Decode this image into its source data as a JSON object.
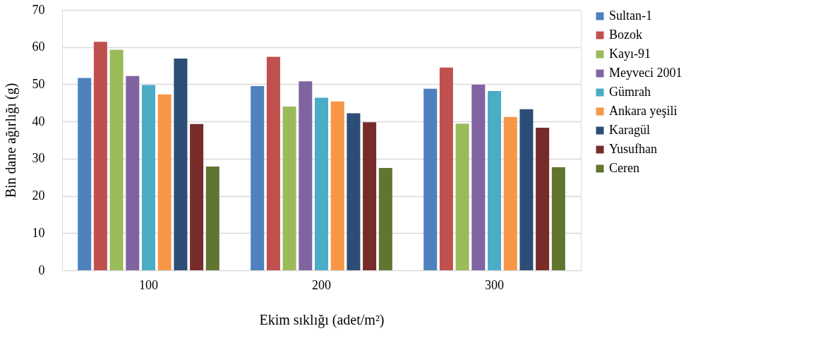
{
  "chart_data": {
    "type": "bar",
    "xlabel": "Ekim sıklığı (adet/m²)",
    "ylabel": "Bin dane ağırlığı (g)",
    "categories": [
      "100",
      "200",
      "300"
    ],
    "series": [
      {
        "name": "Sultan-1",
        "color": "#4f81bd",
        "values": [
          51.7,
          49.5,
          48.8
        ]
      },
      {
        "name": "Bozok",
        "color": "#c0504d",
        "values": [
          61.4,
          57.4,
          54.5
        ]
      },
      {
        "name": "Kayı-91",
        "color": "#9bbb59",
        "values": [
          59.3,
          44.0,
          39.4
        ]
      },
      {
        "name": "Meyveci 2001",
        "color": "#8064a2",
        "values": [
          52.2,
          50.8,
          49.9
        ]
      },
      {
        "name": "Gümrah",
        "color": "#4bacc6",
        "values": [
          49.8,
          46.4,
          48.2
        ]
      },
      {
        "name": "Ankara yeşili",
        "color": "#f79646",
        "values": [
          47.3,
          45.4,
          41.2
        ]
      },
      {
        "name": "Karagül",
        "color": "#2c4d75",
        "values": [
          56.9,
          42.2,
          43.3
        ]
      },
      {
        "name": "Yusufhan",
        "color": "#772c2a",
        "values": [
          39.3,
          39.8,
          38.3
        ]
      },
      {
        "name": "Ceren",
        "color": "#5f7530",
        "values": [
          27.9,
          27.5,
          27.7
        ]
      }
    ],
    "ylim": [
      0,
      70
    ],
    "yticks": [
      0,
      10,
      20,
      30,
      40,
      50,
      60,
      70
    ],
    "grid": "y",
    "legend": "right"
  }
}
